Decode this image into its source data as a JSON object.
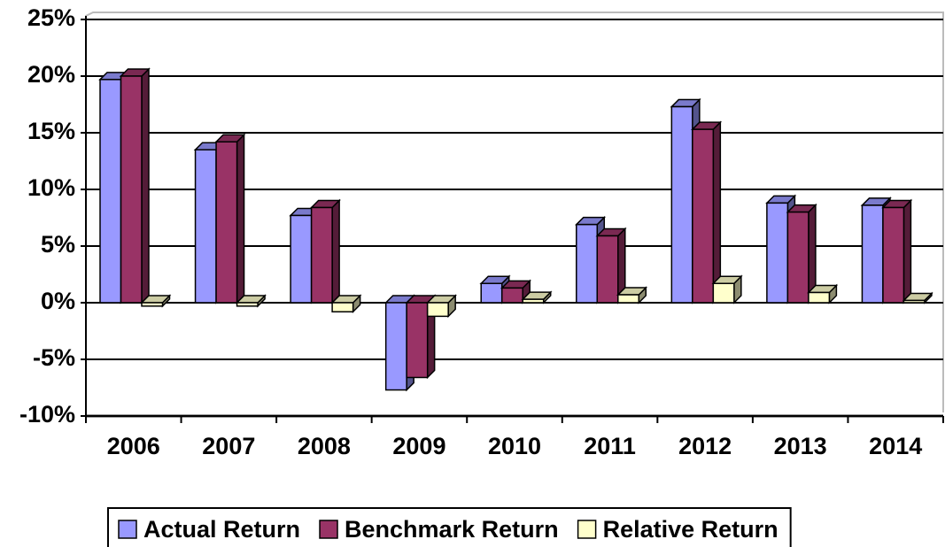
{
  "chart_data": {
    "type": "bar",
    "categories": [
      "2006",
      "2007",
      "2008",
      "2009",
      "2010",
      "2011",
      "2012",
      "2013",
      "2014"
    ],
    "series": [
      {
        "name": "Actual Return",
        "color": "#9999ff",
        "values": [
          19.7,
          13.5,
          7.7,
          -7.7,
          1.7,
          6.9,
          17.3,
          8.8,
          8.6
        ]
      },
      {
        "name": "Benchmark Return",
        "color": "#993366",
        "values": [
          20.0,
          14.2,
          8.4,
          -6.6,
          1.3,
          5.9,
          15.3,
          8.0,
          8.4
        ]
      },
      {
        "name": "Relative Return",
        "color": "#ffffcc",
        "values": [
          -0.3,
          -0.3,
          -0.8,
          -1.2,
          0.3,
          0.7,
          1.7,
          0.9,
          0.2
        ]
      }
    ],
    "ylim": [
      -10,
      25
    ],
    "yticks": [
      {
        "value": -10,
        "label": "-10%"
      },
      {
        "value": -5,
        "label": "-5%"
      },
      {
        "value": 0,
        "label": "0%"
      },
      {
        "value": 5,
        "label": "5%"
      },
      {
        "value": 10,
        "label": "10%"
      },
      {
        "value": 15,
        "label": "15%"
      },
      {
        "value": 20,
        "label": "20%"
      },
      {
        "value": 25,
        "label": "25%"
      }
    ],
    "grid": true,
    "legend_position": "bottom"
  }
}
